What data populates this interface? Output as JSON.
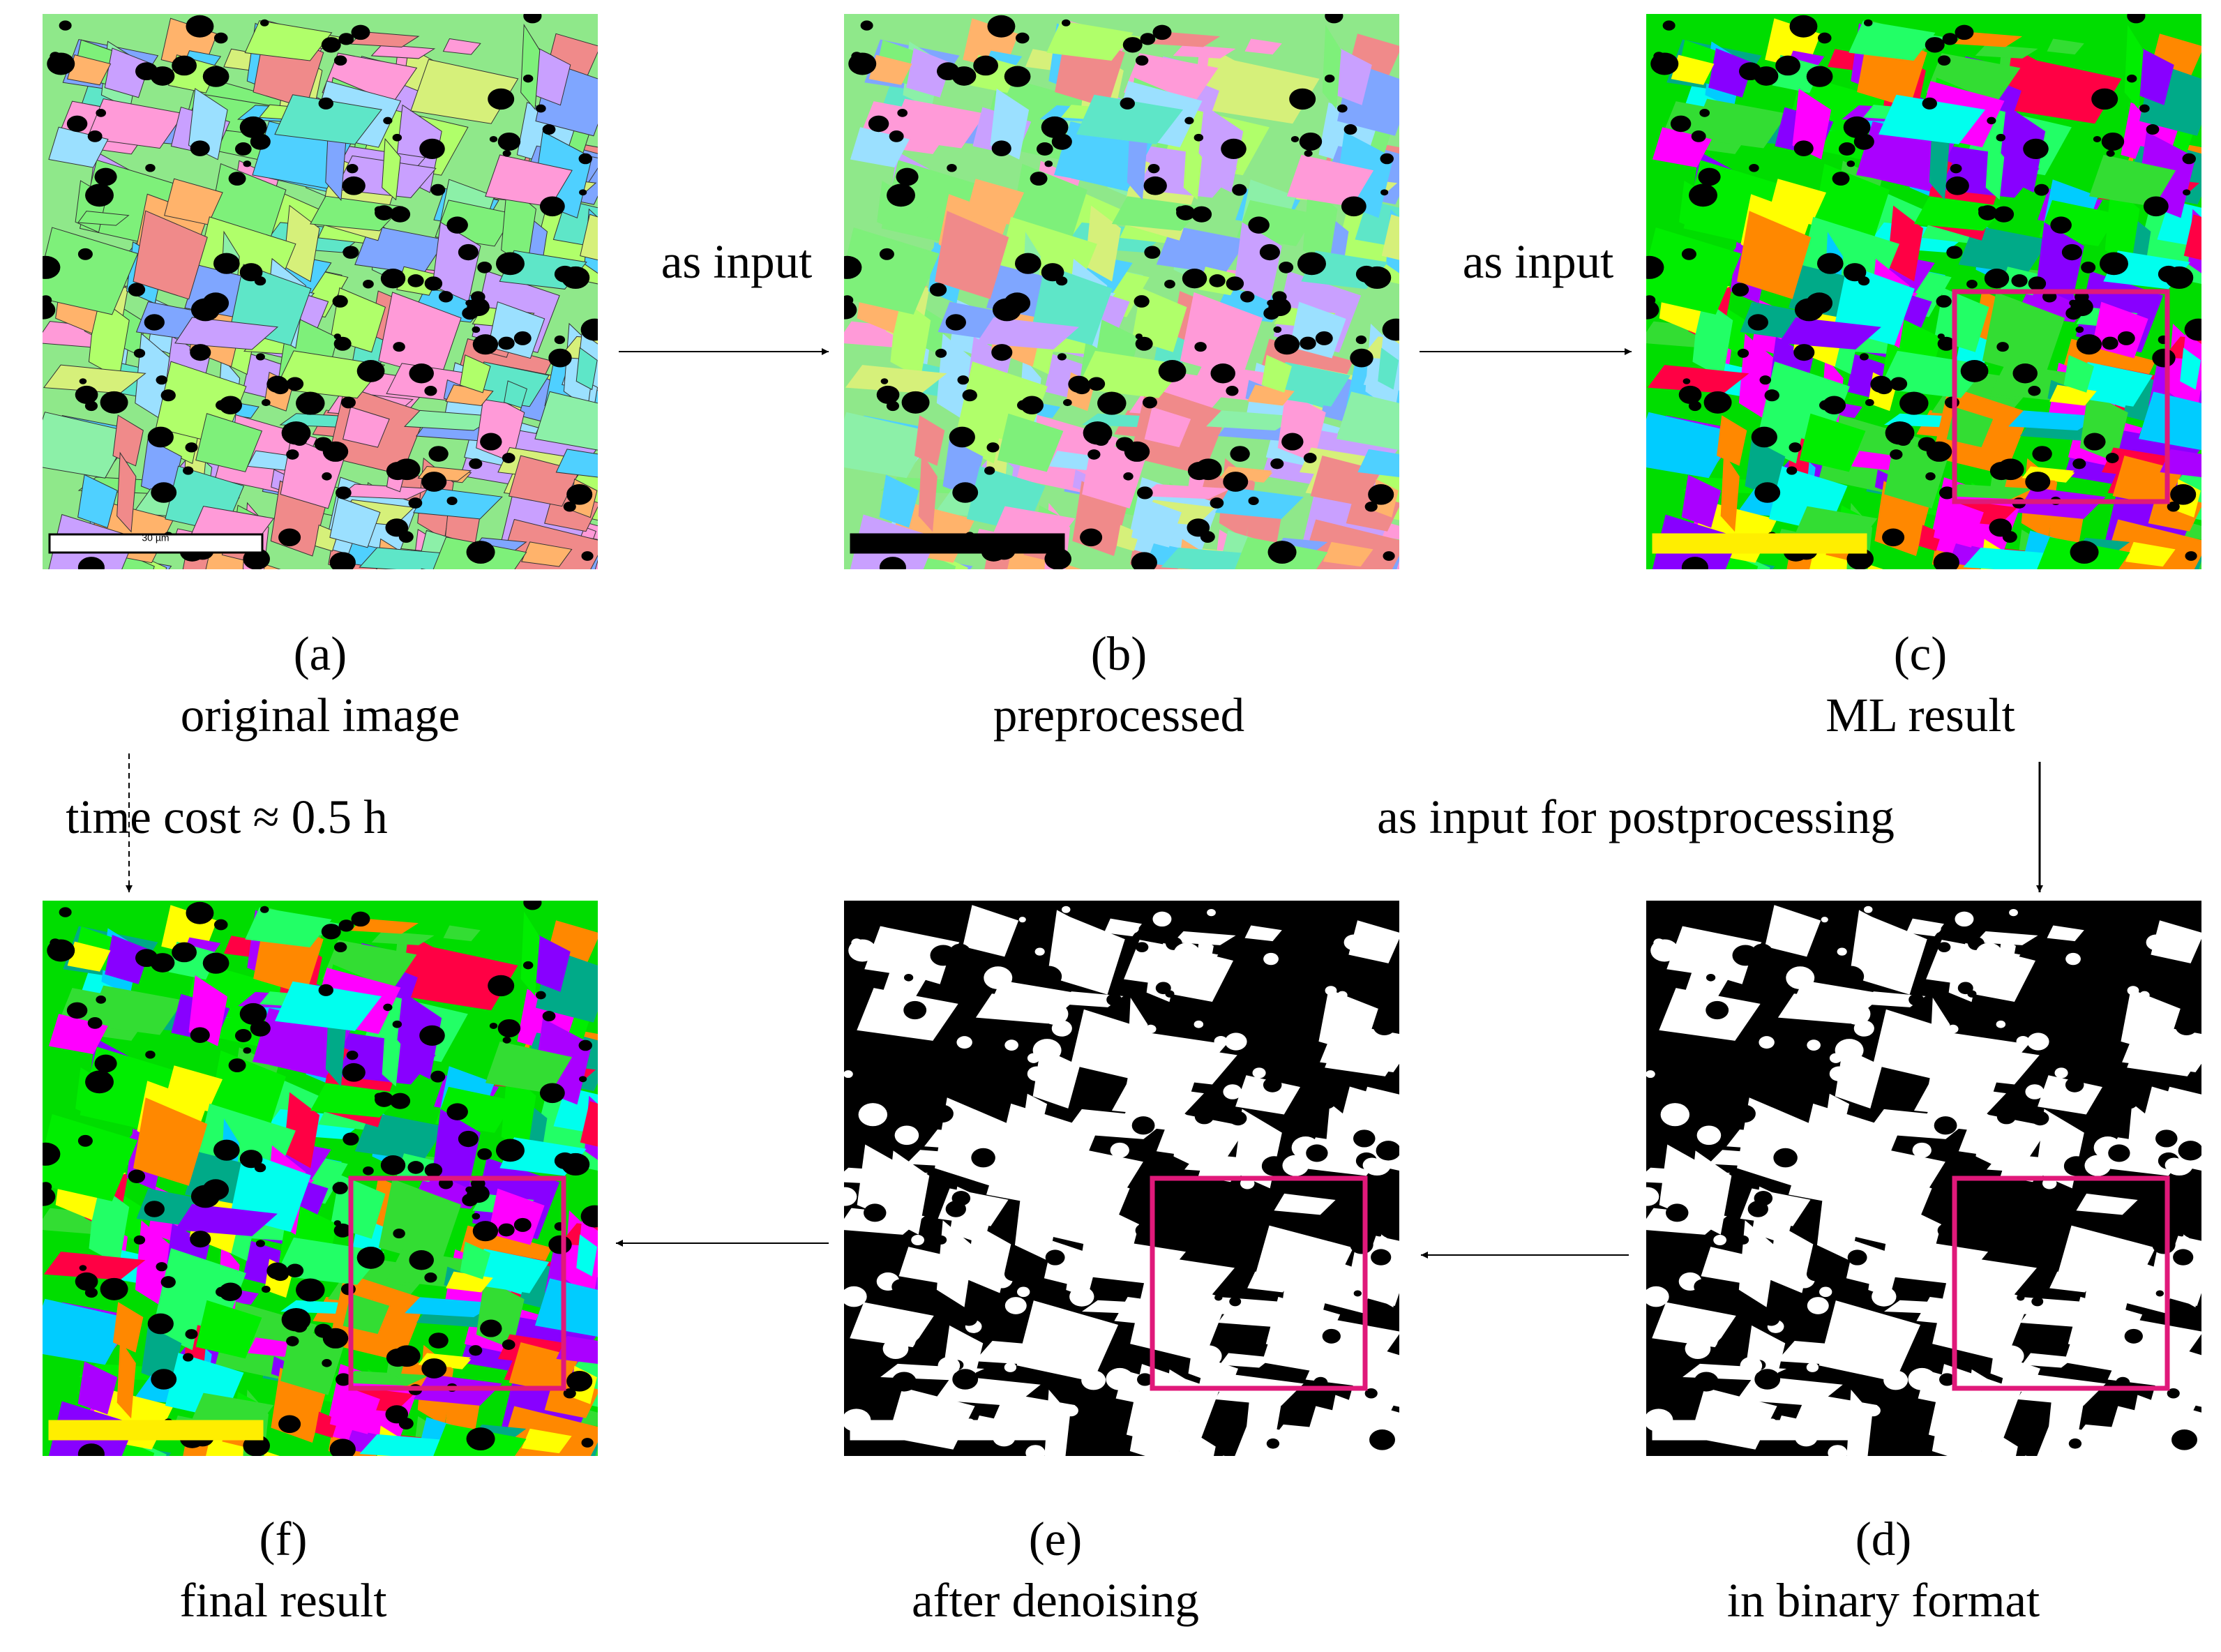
{
  "arrows": {
    "a_to_b": "as input",
    "b_to_c": "as input",
    "c_to_d": "as input for postprocessing",
    "a_to_f": "time cost ≈ 0.5 h"
  },
  "panels": [
    {
      "tag": "(a)",
      "caption": "original image",
      "scale_label": "30 µm"
    },
    {
      "tag": "(b)",
      "caption": "preprocessed"
    },
    {
      "tag": "(c)",
      "caption": "ML result"
    },
    {
      "tag": "(d)",
      "caption": "in binary format"
    },
    {
      "tag": "(e)",
      "caption": "after denoising"
    },
    {
      "tag": "(f)",
      "caption": "final result"
    }
  ]
}
